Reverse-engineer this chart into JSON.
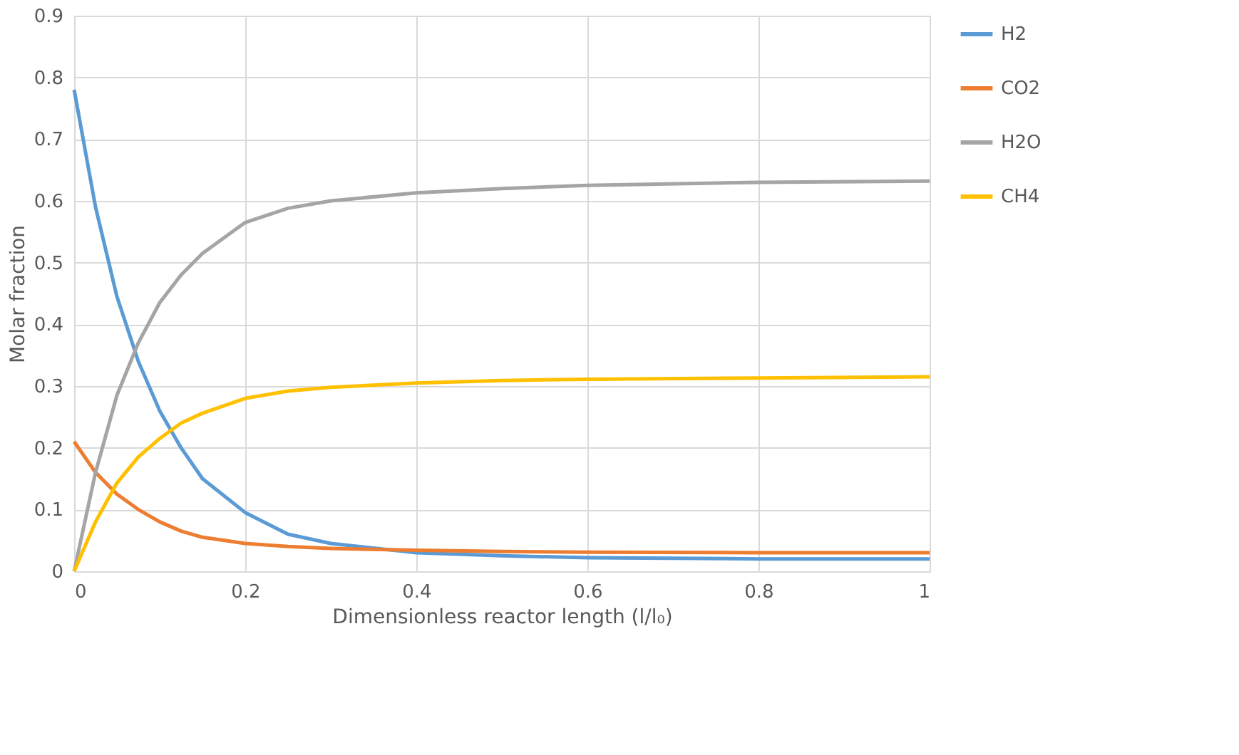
{
  "chart_data": {
    "type": "line",
    "xlabel": "Dimensionless reactor length (l/l₀)",
    "ylabel": "Molar fraction",
    "x": [
      0,
      0.025,
      0.05,
      0.075,
      0.1,
      0.125,
      0.15,
      0.2,
      0.25,
      0.3,
      0.4,
      0.5,
      0.6,
      0.8,
      1.0
    ],
    "series": [
      {
        "name": "H2",
        "color": "#5b9bd5",
        "values": [
          0.78,
          0.59,
          0.445,
          0.34,
          0.26,
          0.2,
          0.15,
          0.095,
          0.06,
          0.045,
          0.03,
          0.025,
          0.022,
          0.02,
          0.02
        ]
      },
      {
        "name": "CO2",
        "color": "#ed7d31",
        "values": [
          0.21,
          0.16,
          0.125,
          0.1,
          0.08,
          0.065,
          0.055,
          0.045,
          0.04,
          0.037,
          0.034,
          0.032,
          0.031,
          0.03,
          0.03
        ]
      },
      {
        "name": "H2O",
        "color": "#a5a5a5",
        "values": [
          0,
          0.16,
          0.285,
          0.37,
          0.435,
          0.48,
          0.515,
          0.565,
          0.588,
          0.6,
          0.613,
          0.62,
          0.625,
          0.63,
          0.632
        ]
      },
      {
        "name": "CH4",
        "color": "#ffc000",
        "values": [
          0,
          0.08,
          0.143,
          0.185,
          0.215,
          0.24,
          0.256,
          0.28,
          0.292,
          0.298,
          0.305,
          0.309,
          0.311,
          0.313,
          0.315
        ]
      }
    ],
    "xlim": [
      0,
      1
    ],
    "xticks": [
      0,
      0.2,
      0.4,
      0.6,
      0.8,
      1
    ],
    "ylim": [
      0,
      0.9
    ],
    "yticks": [
      0,
      0.1,
      0.2,
      0.3,
      0.4,
      0.5,
      0.6,
      0.7,
      0.8,
      0.9
    ],
    "grid": true,
    "legend": "right",
    "marker": "none",
    "line_style": "solid"
  }
}
